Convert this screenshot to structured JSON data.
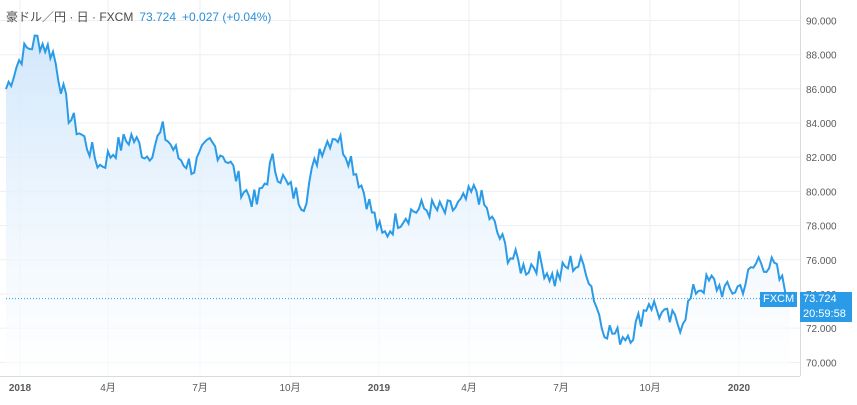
{
  "legend": {
    "symbol_label": "豪ドル／円 · 日 · FXCM",
    "last_price": "73.724",
    "change": "+0.027 (+0.04%)"
  },
  "price_flag": {
    "source_label": "FXCM",
    "price": "73.724",
    "countdown": "20:59:58"
  },
  "colors": {
    "line": "#2b9be8",
    "area_top": "#cfe6fb",
    "area_bottom": "#ffffff",
    "grid": "#e9eef3",
    "axis_text": "#5a5a5a",
    "flag_bg": "#2b9be8"
  },
  "chart_data": {
    "type": "area",
    "title": "",
    "xlabel": "",
    "ylabel": "",
    "ylim": [
      69.2,
      91.2
    ],
    "y_ticks": [
      "70.000",
      "72.000",
      "74.000",
      "76.000",
      "78.000",
      "80.000",
      "82.000",
      "84.000",
      "86.000",
      "88.000",
      "90.000"
    ],
    "x_ticks": [
      "2018",
      "4月",
      "7月",
      "10月",
      "2019",
      "4月",
      "7月",
      "10月",
      "2020"
    ],
    "grid": true,
    "series": [
      {
        "name": "",
        "x": [
          "2018-01",
          "2018-01",
          "2018-02",
          "2018-02",
          "2018-03",
          "2018-03",
          "2018-04",
          "2018-04",
          "2018-05",
          "2018-05",
          "2018-06",
          "2018-06",
          "2018-07",
          "2018-07",
          "2018-08",
          "2018-08",
          "2018-09",
          "2018-09",
          "2018-10",
          "2018-10",
          "2018-11",
          "2018-11",
          "2018-12",
          "2018-12",
          "2019-01",
          "2019-01",
          "2019-02",
          "2019-02",
          "2019-03",
          "2019-03",
          "2019-04",
          "2019-04",
          "2019-05",
          "2019-05",
          "2019-06",
          "2019-06",
          "2019-07",
          "2019-07",
          "2019-08",
          "2019-08",
          "2019-09",
          "2019-09",
          "2019-10",
          "2019-10",
          "2019-11",
          "2019-11",
          "2019-12",
          "2019-12",
          "2020-01",
          "2020-01",
          "2020-02"
        ],
        "values": [
          86.0,
          88.0,
          88.9,
          88.1,
          84.5,
          83.0,
          81.5,
          82.5,
          83.2,
          82.1,
          83.5,
          82.0,
          81.4,
          82.8,
          82.1,
          80.3,
          79.3,
          81.7,
          80.2,
          79.4,
          82.5,
          83.4,
          81.9,
          79.6,
          77.3,
          78.4,
          78.9,
          79.0,
          78.8,
          79.2,
          80.1,
          78.2,
          76.4,
          75.5,
          75.9,
          74.8,
          75.8,
          75.6,
          72.2,
          71.5,
          71.8,
          73.6,
          72.6,
          72.3,
          74.3,
          74.7,
          74.1,
          74.5,
          76.0,
          75.5,
          73.7
        ]
      }
    ]
  }
}
